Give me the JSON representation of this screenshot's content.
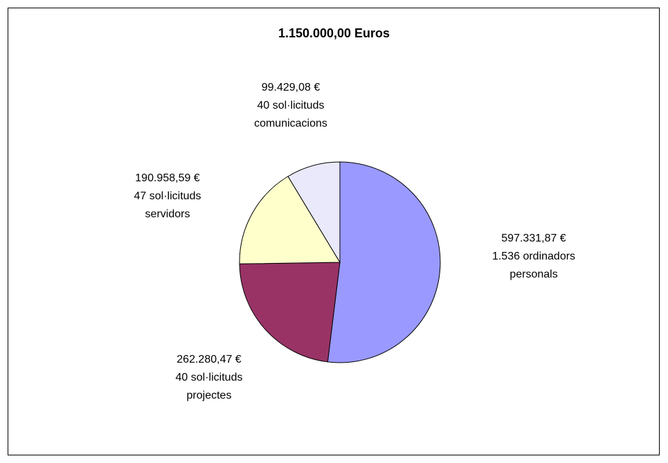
{
  "chart_data": {
    "type": "pie",
    "title": "1.150.000,00 Euros",
    "categories": [
      "1.536 ordinadors personals",
      "40 sol·licituds projectes",
      "47 sol·licituds servidors",
      "40 sol·licituds comunicacions"
    ],
    "values": [
      597331.87,
      262280.47,
      190958.59,
      99429.08
    ],
    "value_labels": [
      "597.331,87 €",
      "262.280,47 €",
      "190.958,59 €",
      "99.429,08 €"
    ],
    "colors": [
      "#9999ff",
      "#993366",
      "#ffffcc",
      "#e9e9fb"
    ]
  }
}
